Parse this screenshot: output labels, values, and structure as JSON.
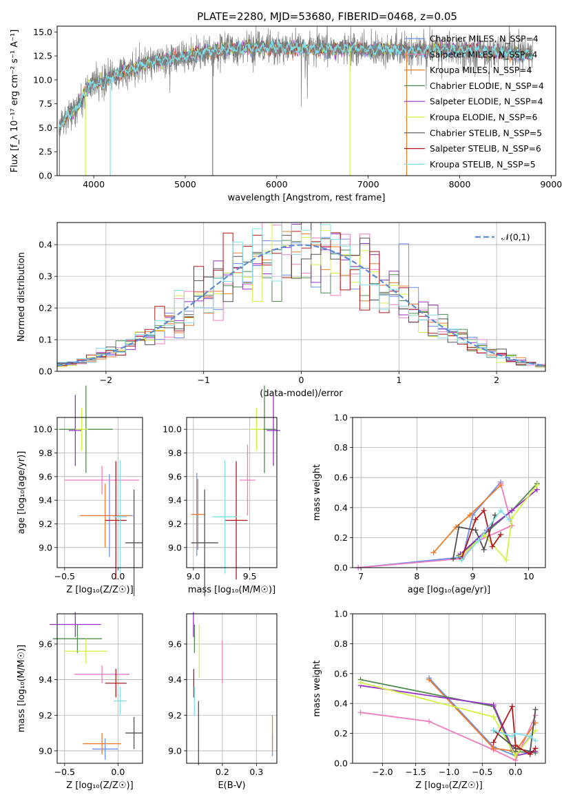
{
  "colors": {
    "grid": "#b0b0b0",
    "series": [
      "#6890f0",
      "#f07cc0",
      "#f07a28",
      "#4c8a4c",
      "#9a2ec6",
      "#d4f040",
      "#505050",
      "#b01818",
      "#82e0e8"
    ]
  },
  "panels": [
    {
      "id": "spectrum",
      "chart_data": {
        "type": "line",
        "title": "PLATE=2280, MJD=53680, FIBERID=0468, z=0.05",
        "xlabel": "wavelength [Angstrom, rest frame]",
        "ylabel": "Flux [f_λ 10⁻¹⁷ erg cm⁻² s⁻¹ A⁻¹]",
        "xlim": [
          3600,
          9050
        ],
        "ylim": [
          0,
          15.6
        ],
        "xticks": [
          4000,
          5000,
          6000,
          7000,
          8000,
          9000
        ],
        "xtick_labels": [
          "4000",
          "5000",
          "6000",
          "7000",
          "8000",
          "9000"
        ],
        "yticks": [
          0,
          2.5,
          5,
          7.5,
          10,
          12.5,
          15
        ],
        "ytick_labels": [
          "0.0",
          "2.5",
          "5.0",
          "7.5",
          "10.0",
          "12.5",
          "15.0"
        ],
        "grid": false,
        "legend_position": "right",
        "legend": [
          "Chabrier MILES, N_SSP=4",
          "Salpeter MILES, N_SSP=4",
          "Kroupa MILES, N_SSP=4",
          "Chabrier ELODIE, N_SSP=4",
          "Salpeter ELODIE, N_SSP=4",
          "Kroupa ELODIE, N_SSP=6",
          "Chabrier STELIB, N_SSP=5",
          "Salpeter STELIB, N_SSP=6",
          "Kroupa STELIB, N_SSP=5"
        ],
        "data_series": {
          "x": [
            3620,
            3700,
            3800,
            3900,
            4000,
            4100,
            4200,
            4300,
            4400,
            4500,
            4600,
            4700,
            4800,
            4900,
            5000,
            5200,
            5400,
            5600,
            5800,
            6000,
            6200,
            6400,
            6600,
            6800,
            7000,
            7200,
            7400,
            7600,
            7800,
            8000,
            8200,
            8400,
            8600,
            8800
          ],
          "y": [
            5.0,
            6.2,
            6.8,
            8.6,
            9.8,
            9.6,
            10.4,
            10.7,
            11.1,
            11.5,
            11.8,
            12.0,
            12.1,
            12.2,
            12.4,
            12.9,
            13.1,
            13.3,
            13.4,
            13.4,
            13.3,
            13.2,
            13.2,
            13.3,
            13.1,
            13.2,
            13.0,
            13.0,
            13.2,
            13.1,
            13.0,
            12.9,
            12.7,
            12.7
          ]
        }
      }
    },
    {
      "id": "residuals",
      "chart_data": {
        "type": "line",
        "xlabel": "(data-model)/error",
        "ylabel": "Normed distribution",
        "xlim": [
          -2.5,
          2.5
        ],
        "ylim": [
          0,
          0.47
        ],
        "xticks": [
          -2,
          -1,
          0,
          1,
          2
        ],
        "xtick_labels": [
          "−2",
          "−1",
          "0",
          "1",
          "2"
        ],
        "yticks": [
          0,
          0.1,
          0.2,
          0.3,
          0.4
        ],
        "ytick_labels": [
          "0.0",
          "0.1",
          "0.2",
          "0.3",
          "0.4"
        ],
        "grid": true,
        "legend_position": "top-right",
        "legend": [
          "𝒩(0,1)"
        ],
        "bin_width": 0.1,
        "histogram_x_range": [
          -2.5,
          2.5
        ]
      }
    },
    {
      "id": "age_vs_Z",
      "chart_data": {
        "type": "scatter",
        "xlabel": "Z [log₁₀(Z/Z☉)]",
        "ylabel": "age  [log₁₀(age/yr)]",
        "xlim": [
          -0.57,
          0.23
        ],
        "ylim": [
          8.83,
          10.1
        ],
        "xticks": [
          -0.5,
          0.0
        ],
        "xtick_labels": [
          "−0.5",
          "0.0"
        ],
        "yticks": [
          9.0,
          9.2,
          9.4,
          9.6,
          9.8,
          10.0
        ],
        "ytick_labels": [
          "9.0",
          "9.2",
          "9.4",
          "9.6",
          "9.8",
          "10.0"
        ],
        "grid": true,
        "series": [
          {
            "x": -0.08,
            "y": 9.27,
            "xerr": 0.22,
            "yerr": 0.35
          },
          {
            "x": -0.15,
            "y": 9.57,
            "xerr": 0.35,
            "yerr": 0.12
          },
          {
            "x": -0.12,
            "y": 9.27,
            "xerr": 0.24,
            "yerr": 0.27
          },
          {
            "x": -0.3,
            "y": 10.0,
            "xerr": 0.25,
            "yerr": 0.37
          },
          {
            "x": -0.4,
            "y": 9.99,
            "xerr": 0.06,
            "yerr": 0.3
          },
          {
            "x": -0.34,
            "y": 10.0,
            "xerr": 0.06,
            "yerr": 0.18
          },
          {
            "x": 0.15,
            "y": 9.04,
            "xerr": 0.08,
            "yerr": 0.45
          },
          {
            "x": -0.02,
            "y": 9.23,
            "xerr": 0.1,
            "yerr": 0.5
          },
          {
            "x": 0.02,
            "y": 9.26,
            "xerr": 0.06,
            "yerr": 0.48
          }
        ]
      }
    },
    {
      "id": "age_vs_mass",
      "chart_data": {
        "type": "scatter",
        "xlabel": "mass [log₁₀(M/M☉)]",
        "ylabel": "",
        "xlim": [
          8.94,
          9.74
        ],
        "ylim": [
          8.83,
          10.1
        ],
        "xticks": [
          9.0,
          9.5
        ],
        "xtick_labels": [
          "9.0",
          "9.5"
        ],
        "yticks": [
          9.0,
          9.2,
          9.4,
          9.6,
          9.8,
          10.0
        ],
        "ytick_labels": [
          "9.0",
          "9.2",
          "9.4",
          "9.6",
          "9.8",
          "10.0"
        ],
        "grid": true,
        "series": [
          {
            "x": 9.03,
            "y": 9.28,
            "xerr": 0.05,
            "yerr": 0.35
          },
          {
            "x": 9.48,
            "y": 9.57,
            "xerr": 0.07,
            "yerr": 0.3
          },
          {
            "x": 9.04,
            "y": 9.28,
            "xerr": 0.06,
            "yerr": 0.3
          },
          {
            "x": 9.63,
            "y": 10.0,
            "xerr": 0.1,
            "yerr": 0.37
          },
          {
            "x": 9.71,
            "y": 9.99,
            "xerr": 0.06,
            "yerr": 0.3
          },
          {
            "x": 9.56,
            "y": 10.0,
            "xerr": 0.06,
            "yerr": 0.18
          },
          {
            "x": 9.1,
            "y": 9.04,
            "xerr": 0.12,
            "yerr": 0.45
          },
          {
            "x": 9.38,
            "y": 9.23,
            "xerr": 0.1,
            "yerr": 0.5
          },
          {
            "x": 9.28,
            "y": 9.26,
            "xerr": 0.11,
            "yerr": 0.48
          }
        ]
      }
    },
    {
      "id": "weight_vs_age",
      "chart_data": {
        "type": "line",
        "xlabel": "age  [log₁₀(age/yr)]",
        "ylabel": "mass weight",
        "xlim": [
          6.85,
          10.3
        ],
        "ylim": [
          0,
          1
        ],
        "xticks": [
          7,
          8,
          9,
          10
        ],
        "xtick_labels": [
          "7",
          "8",
          "9",
          "10"
        ],
        "yticks": [
          0,
          0.2,
          0.4,
          0.6,
          0.8,
          1.0
        ],
        "ytick_labels": [
          "0.0",
          "0.2",
          "0.4",
          "0.6",
          "0.8",
          "1.0"
        ],
        "grid": true,
        "series": [
          {
            "points": [
              [
                6.95,
                0.0
              ],
              [
                8.82,
                0.07
              ],
              [
                9.0,
                0.35
              ],
              [
                9.5,
                0.57
              ]
            ]
          },
          {
            "points": [
              [
                6.95,
                0.0
              ],
              [
                8.8,
                0.06
              ],
              [
                9.1,
                0.18
              ],
              [
                9.7,
                0.28
              ],
              [
                9.5,
                0.56
              ]
            ]
          },
          {
            "points": [
              [
                8.3,
                0.1
              ],
              [
                8.7,
                0.27
              ],
              [
                8.95,
                0.35
              ],
              [
                9.5,
                0.55
              ]
            ]
          },
          {
            "points": [
              [
                8.75,
                0.08
              ],
              [
                9.2,
                0.22
              ],
              [
                9.7,
                0.38
              ],
              [
                10.15,
                0.56
              ]
            ]
          },
          {
            "points": [
              [
                8.78,
                0.09
              ],
              [
                9.25,
                0.25
              ],
              [
                9.7,
                0.38
              ],
              [
                10.15,
                0.52
              ]
            ]
          },
          {
            "points": [
              [
                8.8,
                0.08
              ],
              [
                9.2,
                0.22
              ],
              [
                9.6,
                0.05
              ],
              [
                9.7,
                0.33
              ],
              [
                10.15,
                0.55
              ]
            ]
          },
          {
            "points": [
              [
                8.65,
                0.06
              ],
              [
                8.75,
                0.27
              ],
              [
                9.05,
                0.25
              ],
              [
                9.2,
                0.12
              ],
              [
                9.4,
                0.35
              ]
            ]
          },
          {
            "points": [
              [
                8.8,
                0.06
              ],
              [
                9.05,
                0.32
              ],
              [
                9.2,
                0.38
              ],
              [
                9.35,
                0.14
              ],
              [
                9.5,
                0.22
              ]
            ]
          },
          {
            "points": [
              [
                8.8,
                0.05
              ],
              [
                9.1,
                0.18
              ],
              [
                9.5,
                0.38
              ],
              [
                9.65,
                0.32
              ]
            ]
          }
        ]
      }
    },
    {
      "id": "mass_vs_Z",
      "chart_data": {
        "type": "scatter",
        "xlabel": "Z [log₁₀(Z/Z☉)]",
        "ylabel": "mass [log₁₀(M/M☉)]",
        "xlim": [
          -0.57,
          0.23
        ],
        "ylim": [
          8.93,
          9.77
        ],
        "xticks": [
          -0.5,
          0.0
        ],
        "xtick_labels": [
          "−0.5",
          "0.0"
        ],
        "yticks": [
          9.0,
          9.2,
          9.4,
          9.6
        ],
        "ytick_labels": [
          "9.0",
          "9.2",
          "9.4",
          "9.6"
        ],
        "grid": true,
        "series": [
          {
            "x": -0.12,
            "y": 9.01,
            "xerr": 0.12,
            "yerr": 0.06
          },
          {
            "x": -0.15,
            "y": 9.43,
            "xerr": 0.26,
            "yerr": 0.05
          },
          {
            "x": -0.15,
            "y": 9.04,
            "xerr": 0.18,
            "yerr": 0.06
          },
          {
            "x": -0.38,
            "y": 9.63,
            "xerr": 0.23,
            "yerr": 0.08
          },
          {
            "x": -0.4,
            "y": 9.71,
            "xerr": 0.24,
            "yerr": 0.07
          },
          {
            "x": -0.3,
            "y": 9.56,
            "xerr": 0.2,
            "yerr": 0.07
          },
          {
            "x": 0.15,
            "y": 9.1,
            "xerr": 0.08,
            "yerr": 0.09
          },
          {
            "x": -0.02,
            "y": 9.38,
            "xerr": 0.1,
            "yerr": 0.08
          },
          {
            "x": 0.02,
            "y": 9.28,
            "xerr": 0.06,
            "yerr": 0.08
          }
        ]
      }
    },
    {
      "id": "mass_vs_ebv",
      "chart_data": {
        "type": "scatter",
        "xlabel": "E(B-V)",
        "ylabel": "",
        "xlim": [
          0.095,
          0.36
        ],
        "ylim": [
          8.93,
          9.77
        ],
        "xticks": [
          0.2,
          0.3
        ],
        "xtick_labels": [
          "0.2",
          "0.3"
        ],
        "yticks": [
          9.0,
          9.2,
          9.4,
          9.6
        ],
        "ytick_labels": [
          "9.0",
          "9.2",
          "9.4",
          "9.6"
        ],
        "grid": true,
        "series": [
          {
            "x": 0.347,
            "y": 9.03,
            "xerr": 0.0,
            "yerr": 0.06
          },
          {
            "x": 0.2,
            "y": 9.5,
            "xerr": 0.0,
            "yerr": 0.12
          },
          {
            "x": 0.347,
            "y": 9.1,
            "xerr": 0.0,
            "yerr": 0.1
          },
          {
            "x": 0.118,
            "y": 9.63,
            "xerr": 0.0,
            "yerr": 0.08
          },
          {
            "x": 0.115,
            "y": 9.71,
            "xerr": 0.0,
            "yerr": 0.07
          },
          {
            "x": 0.132,
            "y": 9.56,
            "xerr": 0.0,
            "yerr": 0.15
          },
          {
            "x": 0.13,
            "y": 9.1,
            "xerr": 0.0,
            "yerr": 0.18
          },
          {
            "x": 0.116,
            "y": 9.38,
            "xerr": 0.0,
            "yerr": 0.08
          },
          {
            "x": 0.118,
            "y": 9.28,
            "xerr": 0.0,
            "yerr": 0.08
          }
        ]
      }
    },
    {
      "id": "weight_vs_Z",
      "chart_data": {
        "type": "line",
        "xlabel": "Z [log₁₀(Z/Z☉)]",
        "ylabel": "mass weight",
        "xlim": [
          -2.45,
          0.45
        ],
        "ylim": [
          0,
          1
        ],
        "xticks": [
          -2.0,
          -1.5,
          -1.0,
          -0.5,
          0.0
        ],
        "xtick_labels": [
          "−2.0",
          "−1.5",
          "−1.0",
          "−0.5",
          "0.0"
        ],
        "yticks": [
          0,
          0.2,
          0.4,
          0.6,
          0.8,
          1.0
        ],
        "ytick_labels": [
          "0.0",
          "0.2",
          "0.4",
          "0.6",
          "0.8",
          "1.0"
        ],
        "grid": true,
        "series": [
          {
            "points": [
              [
                -1.3,
                0.57
              ],
              [
                -0.33,
                0.11
              ],
              [
                0.0,
                0.05
              ],
              [
                0.22,
                0.18
              ]
            ]
          },
          {
            "points": [
              [
                -2.33,
                0.34
              ],
              [
                -1.3,
                0.28
              ],
              [
                -0.33,
                0.09
              ],
              [
                0.0,
                0.02
              ],
              [
                0.3,
                0.32
              ]
            ]
          },
          {
            "points": [
              [
                -1.3,
                0.56
              ],
              [
                -0.33,
                0.1
              ],
              [
                0.0,
                0.08
              ],
              [
                0.3,
                0.27
              ]
            ]
          },
          {
            "points": [
              [
                -2.33,
                0.56
              ],
              [
                -0.33,
                0.38
              ],
              [
                -0.05,
                0.08
              ],
              [
                0.3,
                0.07
              ]
            ]
          },
          {
            "points": [
              [
                -2.33,
                0.52
              ],
              [
                -0.33,
                0.39
              ],
              [
                0.0,
                0.05
              ],
              [
                0.3,
                0.08
              ]
            ]
          },
          {
            "points": [
              [
                -2.33,
                0.54
              ],
              [
                -0.33,
                0.31
              ],
              [
                0.0,
                0.05
              ],
              [
                0.3,
                0.22
              ]
            ]
          },
          {
            "points": [
              [
                -0.33,
                0.22
              ],
              [
                0.0,
                0.1
              ],
              [
                0.22,
                0.08
              ],
              [
                0.3,
                0.36
              ]
            ]
          },
          {
            "points": [
              [
                -0.33,
                0.14
              ],
              [
                -0.05,
                0.38
              ],
              [
                0.0,
                0.12
              ],
              [
                0.22,
                0.06
              ],
              [
                0.3,
                0.1
              ]
            ]
          },
          {
            "points": [
              [
                -0.33,
                0.22
              ],
              [
                -0.05,
                0.18
              ],
              [
                0.0,
                0.2
              ],
              [
                0.22,
                0.18
              ],
              [
                0.3,
                0.15
              ]
            ]
          }
        ]
      }
    }
  ]
}
